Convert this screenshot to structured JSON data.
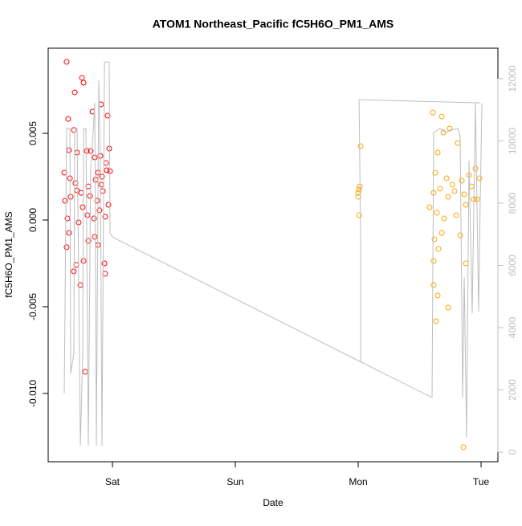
{
  "chart_data": {
    "type": "scatter",
    "title": "ATOM1 Northeast_Pacific fC5H6O_PM1_AMS",
    "xlabel": "Date",
    "ylabel": "fC5H6O_PM1_AMS",
    "xlim": [
      0.477,
      4.137
    ],
    "xticks": [
      {
        "value": 1,
        "label": "Sat"
      },
      {
        "value": 2,
        "label": "Sun"
      },
      {
        "value": 3,
        "label": "Mon"
      },
      {
        "value": 4,
        "label": "Tue"
      }
    ],
    "ylim": [
      -0.01394,
      0.00991
    ],
    "yticks": [
      {
        "value": -0.01,
        "label": "-0.010"
      },
      -0.005,
      {
        "value": 0,
        "label": "0.000"
      },
      0.005
    ],
    "y2lim": [
      -310,
      12980
    ],
    "y2ticks": [
      0,
      2000,
      4000,
      6000,
      8000,
      10000,
      12000
    ],
    "series": [
      {
        "type": "scatter",
        "color": "#ff0000",
        "x": [
          0.627,
          0.752,
          0.693,
          0.765,
          0.64,
          0.837,
          0.686,
          0.823,
          0.647,
          0.712,
          0.791,
          0.856,
          0.902,
          0.948,
          0.974,
          0.961,
          0.608,
          0.654,
          0.699,
          0.745,
          0.804,
          0.863,
          0.908,
          0.954,
          0.98,
          0.614,
          0.66,
          0.712,
          0.758,
          0.817,
          0.876,
          0.922,
          0.967,
          0.634,
          0.725,
          0.797,
          0.85,
          0.895,
          0.941,
          0.647,
          0.804,
          0.856,
          0.627,
          0.706,
          0.765,
          0.882,
          0.935,
          0.686,
          0.739,
          0.941,
          0.778,
          0.908,
          0.882,
          0.915
        ],
        "values": [
          0.00912,
          0.0082,
          0.00736,
          0.00792,
          0.00583,
          0.00625,
          0.00519,
          0.00398,
          0.00403,
          0.00389,
          0.00398,
          0.00361,
          0.0037,
          0.00329,
          0.00412,
          0.00602,
          0.00273,
          0.00241,
          0.00213,
          0.00157,
          0.00194,
          0.00232,
          0.00204,
          0.00287,
          0.00282,
          0.00111,
          0.00134,
          0.00171,
          0.00074,
          0.00139,
          0.00111,
          0.00167,
          0.00088,
          9e-05,
          -0.00014,
          0.00028,
          9e-05,
          0.00056,
          0.00019,
          -0.00074,
          -0.0012,
          -0.00097,
          -0.00157,
          -0.00259,
          -0.00236,
          -0.00144,
          -0.0025,
          -0.00296,
          -0.00375,
          -0.0031,
          -0.00875,
          0.00667,
          0.00273,
          0.0025
        ]
      },
      {
        "type": "scatter",
        "color": "#ffa500",
        "x": [
          3.02,
          3.0,
          3.007,
          3.013,
          3.0,
          3.007,
          3.608,
          3.68,
          3.745,
          3.693,
          3.647,
          3.81,
          3.627,
          3.719,
          3.765,
          3.843,
          3.902,
          3.954,
          3.987,
          3.614,
          3.666,
          3.732,
          3.784,
          3.863,
          3.922,
          3.967,
          3.64,
          3.699,
          3.797,
          3.876,
          3.68,
          3.621,
          3.83,
          3.614,
          3.653,
          3.876,
          3.614,
          3.647,
          3.732,
          3.634,
          3.856,
          3.941,
          3.581
        ],
        "values": [
          0.00426,
          0.00157,
          0.00176,
          0.00194,
          0.00134,
          0.00028,
          0.0062,
          0.00597,
          0.00528,
          0.00505,
          0.00389,
          0.00444,
          0.00273,
          0.00241,
          0.00204,
          0.00227,
          0.00259,
          0.00296,
          0.00241,
          0.00157,
          0.00181,
          0.00134,
          0.00167,
          0.00148,
          0.00194,
          0.0012,
          0.00042,
          9e-05,
          0.00028,
          0.00088,
          -0.00074,
          -0.00111,
          -0.00088,
          -0.00236,
          -0.00167,
          -0.0025,
          -0.00375,
          -0.00435,
          -0.00505,
          -0.00583,
          -0.0131,
          0.0012,
          0.00074
        ]
      },
      {
        "type": "line",
        "color": "#bebebe",
        "axis": "y2",
        "x": [
          0.608,
          0.627,
          0.654,
          0.66,
          0.686,
          0.693,
          0.712,
          0.739,
          0.758,
          0.765,
          0.784,
          0.804,
          0.823,
          0.843,
          0.856,
          0.869,
          0.889,
          0.902,
          0.915,
          0.935,
          0.974,
          0.98,
          1.0,
          3.013,
          3.601,
          3.614,
          3.666,
          3.719,
          3.745,
          3.81,
          3.83,
          3.85,
          3.863,
          3.882,
          3.902,
          3.928,
          3.954,
          3.98,
          3.993,
          4.007,
          null,
          3.02,
          3.02,
          3.007,
          3.993
        ],
        "values": [
          1883,
          10397,
          10397,
          2528,
          3173,
          10268,
          10397,
          206,
          3173,
          10397,
          10397,
          206,
          9107,
          10268,
          11223,
          206,
          11945,
          9365,
          206,
          12539,
          12539,
          7043,
          6914,
          2915,
          1754,
          10268,
          10397,
          10268,
          10346,
          10397,
          10139,
          1754,
          5624,
          464,
          9365,
          4463,
          11223,
          4515,
          8075,
          11223,
          null,
          2915,
          6785,
          11326,
          11223
        ]
      }
    ]
  }
}
